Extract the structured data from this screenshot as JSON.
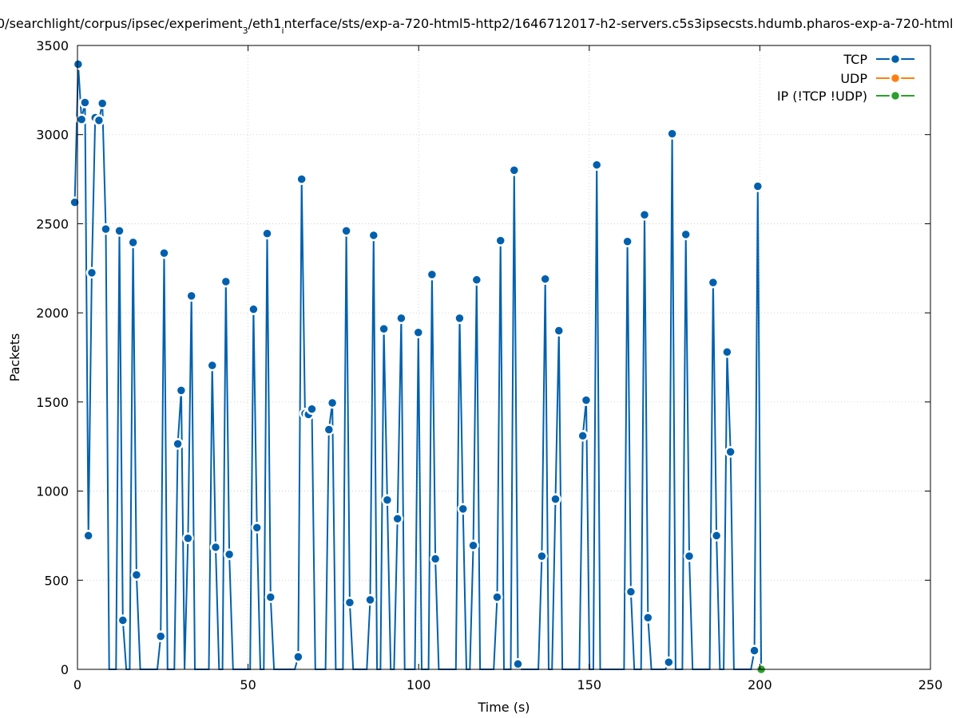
{
  "chart_data": {
    "type": "line",
    "title_parts": [
      "0/searchlight/corpus/ipsec/experiment",
      "3",
      "/eth1",
      "i",
      "nterface/sts/exp-a-720-html5-http2/1646712017-h2-servers.c5s3ipsecsts.hdumb.pharos-exp-a-720-html"
    ],
    "xlabel": "Time (s)",
    "ylabel": "Packets",
    "xlim": [
      0,
      250
    ],
    "ylim": [
      0,
      3500
    ],
    "xticks": [
      0,
      50,
      100,
      150,
      200,
      250
    ],
    "yticks": [
      0,
      500,
      1000,
      1500,
      2000,
      2500,
      3000,
      3500
    ],
    "grid": true,
    "legend_position": "top-right",
    "colors": {
      "TCP": "#0060ad",
      "UDP": "#ff7f0e",
      "IP": "#2ca02c"
    },
    "series": [
      {
        "name": "TCP",
        "points": [
          [
            -0.8,
            2620
          ],
          [
            0.2,
            3395
          ],
          [
            1.2,
            3085
          ],
          [
            2.2,
            3180
          ],
          [
            3.2,
            750
          ],
          [
            4.2,
            2225
          ],
          [
            5.2,
            3095
          ],
          [
            6.3,
            3080
          ],
          [
            7.3,
            3175
          ],
          [
            8.3,
            2470
          ],
          [
            9.3,
            0
          ],
          [
            11.3,
            0
          ],
          [
            12.3,
            2460
          ],
          [
            13.3,
            275
          ],
          [
            14.3,
            0
          ],
          [
            15.3,
            0
          ],
          [
            16.3,
            2395
          ],
          [
            17.3,
            530
          ],
          [
            18.4,
            0
          ],
          [
            23.4,
            0
          ],
          [
            24.4,
            185
          ],
          [
            25.4,
            2335
          ],
          [
            26.4,
            0
          ],
          [
            28.4,
            0
          ],
          [
            29.4,
            1265
          ],
          [
            30.4,
            1565
          ],
          [
            31.4,
            0
          ],
          [
            32.4,
            735
          ],
          [
            33.4,
            2095
          ],
          [
            34.4,
            0
          ],
          [
            38.5,
            0
          ],
          [
            39.5,
            1705
          ],
          [
            40.5,
            685
          ],
          [
            41.5,
            0
          ],
          [
            42.5,
            0
          ],
          [
            43.5,
            2175
          ],
          [
            44.5,
            645
          ],
          [
            45.6,
            0
          ],
          [
            50.6,
            0
          ],
          [
            51.6,
            2020
          ],
          [
            52.6,
            795
          ],
          [
            53.6,
            0
          ],
          [
            54.6,
            0
          ],
          [
            55.6,
            2445
          ],
          [
            56.6,
            405
          ],
          [
            57.6,
            0
          ],
          [
            63.7,
            0
          ],
          [
            64.7,
            70
          ],
          [
            65.7,
            2750
          ],
          [
            66.7,
            1435
          ],
          [
            67.7,
            1430
          ],
          [
            68.7,
            1460
          ],
          [
            69.7,
            0
          ],
          [
            72.7,
            0
          ],
          [
            73.7,
            1345
          ],
          [
            74.7,
            1495
          ],
          [
            75.7,
            0
          ],
          [
            77.8,
            0
          ],
          [
            78.8,
            2460
          ],
          [
            79.8,
            375
          ],
          [
            80.8,
            0
          ],
          [
            84.8,
            0
          ],
          [
            85.8,
            390
          ],
          [
            86.8,
            2435
          ],
          [
            87.8,
            0
          ],
          [
            88.8,
            0
          ],
          [
            89.8,
            1910
          ],
          [
            90.8,
            950
          ],
          [
            91.8,
            0
          ],
          [
            92.8,
            0
          ],
          [
            93.8,
            845
          ],
          [
            94.9,
            1970
          ],
          [
            95.9,
            0
          ],
          [
            98.9,
            0
          ],
          [
            99.9,
            1890
          ],
          [
            100.9,
            0
          ],
          [
            102.9,
            0
          ],
          [
            103.9,
            2215
          ],
          [
            104.9,
            620
          ],
          [
            105.9,
            0
          ],
          [
            110.9,
            0
          ],
          [
            112.0,
            1970
          ],
          [
            113.0,
            900
          ],
          [
            114.0,
            0
          ],
          [
            115.0,
            0
          ],
          [
            116.0,
            695
          ],
          [
            117.0,
            2185
          ],
          [
            118.0,
            0
          ],
          [
            122.0,
            0
          ],
          [
            123.0,
            405
          ],
          [
            124.0,
            2405
          ],
          [
            125.0,
            0
          ],
          [
            127.0,
            0
          ],
          [
            128.0,
            2800
          ],
          [
            129.1,
            30
          ],
          [
            130.1,
            0
          ],
          [
            135.1,
            0
          ],
          [
            136.1,
            635
          ],
          [
            137.1,
            2190
          ],
          [
            138.1,
            0
          ],
          [
            139.1,
            0
          ],
          [
            140.1,
            955
          ],
          [
            141.1,
            1900
          ],
          [
            142.1,
            0
          ],
          [
            147.1,
            0
          ],
          [
            148.1,
            1310
          ],
          [
            149.1,
            1510
          ],
          [
            150.1,
            0
          ],
          [
            151.2,
            0
          ],
          [
            152.2,
            2830
          ],
          [
            153.2,
            0
          ],
          [
            160.2,
            0
          ],
          [
            161.2,
            2400
          ],
          [
            162.2,
            435
          ],
          [
            163.2,
            0
          ],
          [
            165.2,
            0
          ],
          [
            166.2,
            2550
          ],
          [
            167.2,
            290
          ],
          [
            168.2,
            0
          ],
          [
            172.3,
            0
          ],
          [
            173.3,
            40
          ],
          [
            174.3,
            3005
          ],
          [
            175.3,
            0
          ],
          [
            177.3,
            0
          ],
          [
            178.3,
            2440
          ],
          [
            179.3,
            635
          ],
          [
            180.3,
            0
          ],
          [
            185.3,
            0
          ],
          [
            186.3,
            2170
          ],
          [
            187.3,
            750
          ],
          [
            188.3,
            0
          ],
          [
            189.4,
            0
          ],
          [
            190.4,
            1780
          ],
          [
            191.4,
            1220
          ],
          [
            192.4,
            0
          ],
          [
            197.4,
            0
          ],
          [
            198.4,
            105
          ],
          [
            199.4,
            2710
          ],
          [
            200.4,
            0
          ]
        ]
      },
      {
        "name": "UDP",
        "points": []
      },
      {
        "name": "IP (!TCP  !UDP)",
        "points": [
          [
            200.4,
            0
          ]
        ]
      }
    ]
  }
}
